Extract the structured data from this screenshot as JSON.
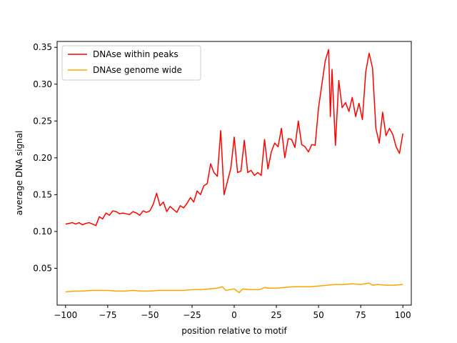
{
  "chart_data": {
    "type": "line",
    "xlabel": "position relative to motif",
    "ylabel": "average DNA signal",
    "xlim": [
      -105,
      105
    ],
    "ylim": [
      0.0,
      0.358
    ],
    "xticks": [
      -100,
      -75,
      -50,
      -25,
      0,
      25,
      50,
      75,
      100
    ],
    "xtick_labels": [
      "−100",
      "−75",
      "−50",
      "−25",
      "0",
      "25",
      "50",
      "75",
      "100"
    ],
    "yticks": [
      0.05,
      0.1,
      0.15,
      0.2,
      0.25,
      0.3,
      0.35
    ],
    "ytick_labels": [
      "0.05",
      "0.10",
      "0.15",
      "0.20",
      "0.25",
      "0.30",
      "0.35"
    ],
    "grid": false,
    "legend_position": "top-left",
    "series": [
      {
        "name": "DNAse within peaks",
        "color": "#ff0000",
        "x": [
          -100,
          -98,
          -96,
          -94,
          -92,
          -90,
          -88,
          -86,
          -84,
          -82,
          -80,
          -78,
          -76,
          -74,
          -72,
          -70,
          -68,
          -66,
          -64,
          -62,
          -60,
          -58,
          -56,
          -54,
          -52,
          -50,
          -48,
          -46,
          -44,
          -42,
          -40,
          -38,
          -36,
          -34,
          -32,
          -30,
          -28,
          -26,
          -24,
          -22,
          -20,
          -18,
          -16,
          -14,
          -12,
          -10,
          -8,
          -6,
          -4,
          -2,
          0,
          2,
          4,
          6,
          8,
          10,
          12,
          14,
          16,
          18,
          20,
          22,
          24,
          26,
          28,
          30,
          32,
          34,
          36,
          38,
          40,
          42,
          44,
          46,
          48,
          50,
          52,
          54,
          56,
          57,
          58,
          60,
          62,
          64,
          66,
          68,
          70,
          72,
          74,
          76,
          78,
          80,
          82,
          84,
          86,
          88,
          90,
          92,
          94,
          96,
          98,
          100
        ],
        "y": [
          0.11,
          0.111,
          0.112,
          0.11,
          0.112,
          0.109,
          0.111,
          0.112,
          0.11,
          0.108,
          0.12,
          0.117,
          0.125,
          0.122,
          0.128,
          0.127,
          0.124,
          0.125,
          0.124,
          0.123,
          0.127,
          0.125,
          0.122,
          0.128,
          0.126,
          0.128,
          0.137,
          0.152,
          0.135,
          0.14,
          0.127,
          0.134,
          0.13,
          0.126,
          0.135,
          0.132,
          0.138,
          0.146,
          0.14,
          0.155,
          0.15,
          0.162,
          0.165,
          0.192,
          0.18,
          0.175,
          0.237,
          0.15,
          0.168,
          0.186,
          0.228,
          0.18,
          0.182,
          0.224,
          0.18,
          0.183,
          0.176,
          0.18,
          0.176,
          0.225,
          0.185,
          0.208,
          0.22,
          0.215,
          0.24,
          0.2,
          0.226,
          0.225,
          0.214,
          0.25,
          0.218,
          0.215,
          0.208,
          0.218,
          0.217,
          0.268,
          0.3,
          0.332,
          0.347,
          0.256,
          0.32,
          0.217,
          0.305,
          0.268,
          0.275,
          0.263,
          0.282,
          0.256,
          0.274,
          0.252,
          0.317,
          0.342,
          0.322,
          0.24,
          0.22,
          0.262,
          0.23,
          0.24,
          0.232,
          0.215,
          0.206,
          0.233
        ]
      },
      {
        "name": "DNAse genome wide",
        "color": "#ffa500",
        "x": [
          -100,
          -95,
          -90,
          -85,
          -80,
          -75,
          -70,
          -65,
          -60,
          -55,
          -50,
          -45,
          -40,
          -35,
          -30,
          -25,
          -20,
          -15,
          -10,
          -7,
          -5,
          0,
          3,
          5,
          10,
          15,
          18,
          20,
          25,
          30,
          35,
          40,
          45,
          50,
          55,
          60,
          65,
          70,
          75,
          80,
          82,
          85,
          90,
          95,
          100
        ],
        "y": [
          0.018,
          0.019,
          0.019,
          0.02,
          0.02,
          0.02,
          0.019,
          0.019,
          0.02,
          0.019,
          0.019,
          0.02,
          0.02,
          0.02,
          0.02,
          0.021,
          0.021,
          0.022,
          0.023,
          0.025,
          0.02,
          0.022,
          0.017,
          0.022,
          0.021,
          0.021,
          0.024,
          0.023,
          0.023,
          0.024,
          0.025,
          0.025,
          0.025,
          0.026,
          0.027,
          0.028,
          0.028,
          0.029,
          0.028,
          0.03,
          0.027,
          0.028,
          0.027,
          0.027,
          0.028
        ]
      }
    ]
  }
}
